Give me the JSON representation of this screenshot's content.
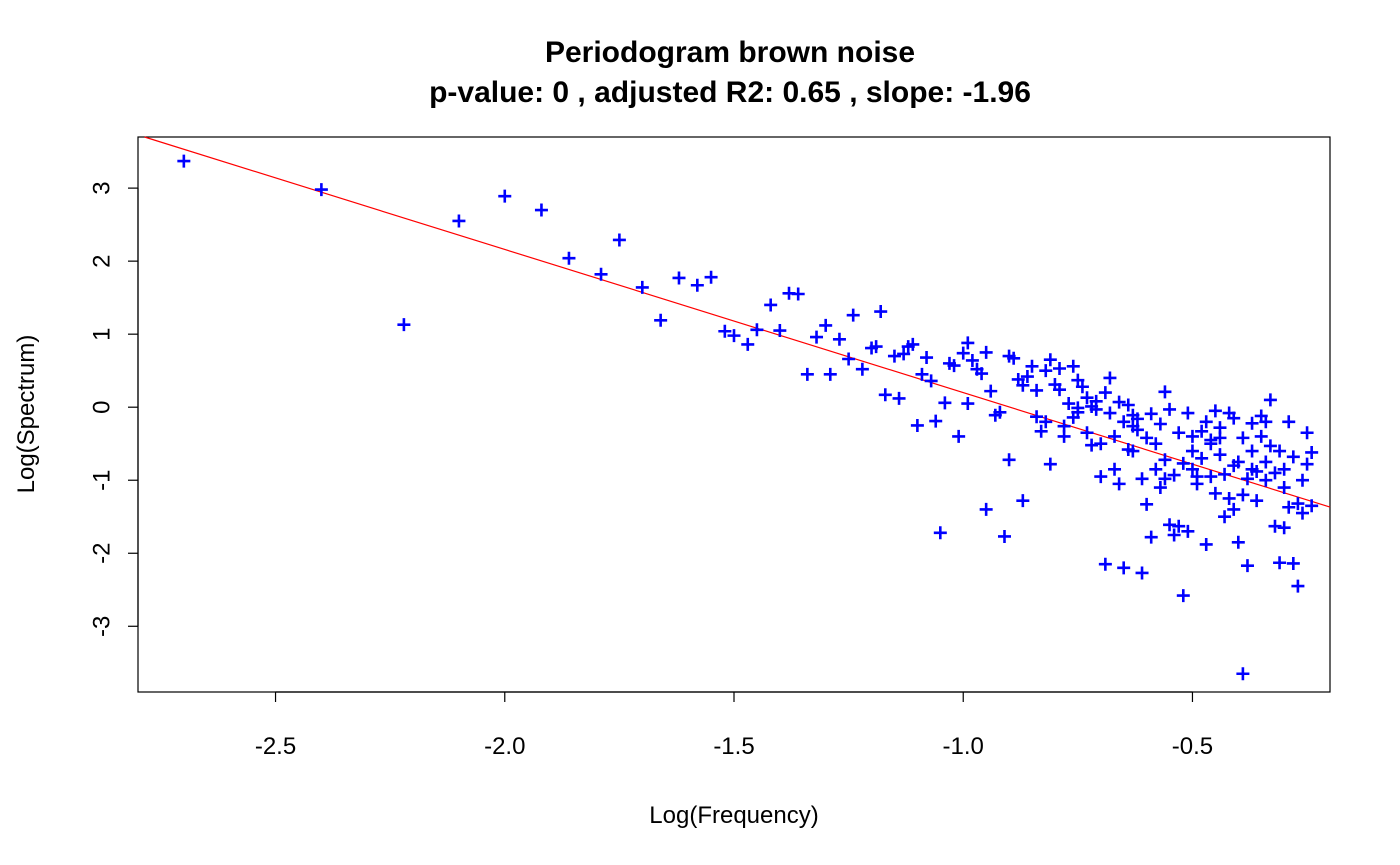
{
  "chart_data": {
    "type": "scatter",
    "title": "Periodogram brown noise",
    "subtitle": "p-value: 0 , adjusted R2: 0.65 , slope: -1.96",
    "xlabel": "Log(Frequency)",
    "ylabel": "Log(Spectrum)",
    "xlim": [
      -2.8,
      -0.2
    ],
    "ylim": [
      -3.9,
      3.7
    ],
    "xticks": [
      -2.5,
      -2.0,
      -1.5,
      -1.0,
      -0.5
    ],
    "xtick_labels": [
      "-2.5",
      "-2.0",
      "-1.5",
      "-1.0",
      "-0.5"
    ],
    "yticks": [
      -3,
      -2,
      -1,
      0,
      1,
      2,
      3
    ],
    "ytick_labels": [
      "-3",
      "-2",
      "-1",
      "0",
      "1",
      "2",
      "3"
    ],
    "grid": false,
    "point_color": "#0000ff",
    "line_color": "#ff0000",
    "marker": "plus",
    "fit_line": {
      "slope": -1.96,
      "intercept": -1.76
    },
    "points": [
      [
        -2.7,
        3.37
      ],
      [
        -2.4,
        2.98
      ],
      [
        -2.22,
        1.13
      ],
      [
        -2.1,
        2.55
      ],
      [
        -2.0,
        2.89
      ],
      [
        -1.92,
        2.7
      ],
      [
        -1.86,
        2.04
      ],
      [
        -1.79,
        1.82
      ],
      [
        -1.75,
        2.29
      ],
      [
        -1.7,
        1.64
      ],
      [
        -1.66,
        1.19
      ],
      [
        -1.62,
        1.77
      ],
      [
        -1.58,
        1.67
      ],
      [
        -1.55,
        1.78
      ],
      [
        -1.52,
        1.04
      ],
      [
        -1.5,
        0.98
      ],
      [
        -1.47,
        0.86
      ],
      [
        -1.45,
        1.06
      ],
      [
        -1.42,
        1.4
      ],
      [
        -1.4,
        1.05
      ],
      [
        -1.38,
        1.56
      ],
      [
        -1.36,
        1.55
      ],
      [
        -1.34,
        0.45
      ],
      [
        -1.32,
        0.96
      ],
      [
        -1.3,
        1.12
      ],
      [
        -1.29,
        0.45
      ],
      [
        -1.27,
        0.93
      ],
      [
        -1.25,
        0.66
      ],
      [
        -1.24,
        1.26
      ],
      [
        -1.22,
        0.52
      ],
      [
        -1.2,
        0.81
      ],
      [
        -1.19,
        0.83
      ],
      [
        -1.18,
        1.31
      ],
      [
        -1.17,
        0.17
      ],
      [
        -1.15,
        0.7
      ],
      [
        -1.14,
        0.12
      ],
      [
        -1.13,
        0.73
      ],
      [
        -1.12,
        0.83
      ],
      [
        -1.11,
        0.86
      ],
      [
        -1.1,
        -0.25
      ],
      [
        -1.09,
        0.45
      ],
      [
        -1.08,
        0.68
      ],
      [
        -1.07,
        0.36
      ],
      [
        -1.06,
        -0.19
      ],
      [
        -1.05,
        -1.72
      ],
      [
        -1.04,
        0.06
      ],
      [
        -1.03,
        0.6
      ],
      [
        -1.02,
        0.57
      ],
      [
        -1.01,
        -0.4
      ],
      [
        -1.0,
        0.74
      ],
      [
        -0.99,
        0.88
      ],
      [
        -0.99,
        0.05
      ],
      [
        -0.98,
        0.64
      ],
      [
        -0.97,
        0.52
      ],
      [
        -0.96,
        0.46
      ],
      [
        -0.95,
        0.75
      ],
      [
        -0.95,
        -1.4
      ],
      [
        -0.94,
        0.22
      ],
      [
        -0.93,
        -0.11
      ],
      [
        -0.92,
        -0.07
      ],
      [
        -0.91,
        -1.77
      ],
      [
        -0.9,
        -0.72
      ],
      [
        -0.9,
        0.7
      ],
      [
        -0.89,
        0.67
      ],
      [
        -0.88,
        0.38
      ],
      [
        -0.87,
        0.3
      ],
      [
        -0.87,
        -1.28
      ],
      [
        -0.86,
        0.42
      ],
      [
        -0.85,
        0.56
      ],
      [
        -0.84,
        0.23
      ],
      [
        -0.84,
        -0.13
      ],
      [
        -0.83,
        -0.33
      ],
      [
        -0.82,
        0.5
      ],
      [
        -0.82,
        -0.2
      ],
      [
        -0.81,
        0.65
      ],
      [
        -0.81,
        -0.78
      ],
      [
        -0.8,
        0.31
      ],
      [
        -0.79,
        0.24
      ],
      [
        -0.79,
        0.53
      ],
      [
        -0.78,
        -0.26
      ],
      [
        -0.78,
        -0.4
      ],
      [
        -0.77,
        0.05
      ],
      [
        -0.76,
        0.56
      ],
      [
        -0.76,
        -0.14
      ],
      [
        -0.75,
        0.37
      ],
      [
        -0.75,
        -0.01
      ],
      [
        -0.74,
        0.28
      ],
      [
        -0.73,
        -0.35
      ],
      [
        -0.73,
        0.13
      ],
      [
        -0.72,
        -0.52
      ],
      [
        -0.72,
        0.01
      ],
      [
        -0.71,
        -0.03
      ],
      [
        -0.71,
        0.08
      ],
      [
        -0.7,
        -0.5
      ],
      [
        -0.7,
        -0.95
      ],
      [
        -0.69,
        0.2
      ],
      [
        -0.69,
        -2.15
      ],
      [
        -0.68,
        -0.08
      ],
      [
        -0.68,
        0.4
      ],
      [
        -0.67,
        -0.85
      ],
      [
        -0.67,
        -0.4
      ],
      [
        -0.66,
        -1.05
      ],
      [
        -0.66,
        0.07
      ],
      [
        -0.65,
        -0.2
      ],
      [
        -0.65,
        -2.2
      ],
      [
        -0.64,
        0.03
      ],
      [
        -0.64,
        -0.58
      ],
      [
        -0.63,
        -0.26
      ],
      [
        -0.63,
        -0.6
      ],
      [
        -0.62,
        -0.16
      ],
      [
        -0.62,
        -0.31
      ],
      [
        -0.61,
        -0.98
      ],
      [
        -0.61,
        -2.27
      ],
      [
        -0.6,
        -0.42
      ],
      [
        -0.6,
        -1.33
      ],
      [
        -0.59,
        -0.09
      ],
      [
        -0.59,
        -1.78
      ],
      [
        -0.58,
        -0.85
      ],
      [
        -0.58,
        -0.5
      ],
      [
        -0.57,
        -0.23
      ],
      [
        -0.57,
        -1.1
      ],
      [
        -0.56,
        0.21
      ],
      [
        -0.56,
        -0.72
      ],
      [
        -0.55,
        -1.61
      ],
      [
        -0.55,
        -0.03
      ],
      [
        -0.54,
        -0.93
      ],
      [
        -0.54,
        -1.75
      ],
      [
        -0.53,
        -0.35
      ],
      [
        -0.53,
        -1.63
      ],
      [
        -0.52,
        -2.58
      ],
      [
        -0.52,
        -0.77
      ],
      [
        -0.51,
        -0.08
      ],
      [
        -0.51,
        -1.7
      ],
      [
        -0.5,
        -0.85
      ],
      [
        -0.5,
        -0.4
      ],
      [
        -0.49,
        -1.05
      ],
      [
        -0.49,
        -0.95
      ],
      [
        -0.48,
        -0.7
      ],
      [
        -0.48,
        -0.33
      ],
      [
        -0.47,
        -0.2
      ],
      [
        -0.47,
        -1.88
      ],
      [
        -0.46,
        -0.5
      ],
      [
        -0.46,
        -0.95
      ],
      [
        -0.45,
        -0.05
      ],
      [
        -0.45,
        -1.18
      ],
      [
        -0.44,
        -0.65
      ],
      [
        -0.44,
        -0.42
      ],
      [
        -0.43,
        -0.92
      ],
      [
        -0.43,
        -1.5
      ],
      [
        -0.42,
        -1.25
      ],
      [
        -0.42,
        -0.08
      ],
      [
        -0.41,
        -1.4
      ],
      [
        -0.41,
        -0.15
      ],
      [
        -0.4,
        -0.75
      ],
      [
        -0.4,
        -1.85
      ],
      [
        -0.39,
        -0.42
      ],
      [
        -0.39,
        -3.65
      ],
      [
        -0.38,
        -0.98
      ],
      [
        -0.38,
        -2.17
      ],
      [
        -0.37,
        -0.6
      ],
      [
        -0.37,
        -0.22
      ],
      [
        -0.36,
        -1.28
      ],
      [
        -0.36,
        -0.88
      ],
      [
        -0.35,
        -0.12
      ],
      [
        -0.35,
        -0.4
      ],
      [
        -0.34,
        -1.0
      ],
      [
        -0.34,
        -0.75
      ],
      [
        -0.33,
        0.1
      ],
      [
        -0.33,
        -0.53
      ],
      [
        -0.32,
        -1.63
      ],
      [
        -0.32,
        -0.9
      ],
      [
        -0.31,
        -0.6
      ],
      [
        -0.31,
        -2.13
      ],
      [
        -0.3,
        -0.85
      ],
      [
        -0.3,
        -1.65
      ],
      [
        -0.29,
        -0.2
      ],
      [
        -0.29,
        -1.37
      ],
      [
        -0.28,
        -2.14
      ],
      [
        -0.28,
        -0.68
      ],
      [
        -0.27,
        -1.32
      ],
      [
        -0.27,
        -2.45
      ],
      [
        -0.26,
        -1.0
      ],
      [
        -0.26,
        -1.45
      ],
      [
        -0.25,
        -0.78
      ],
      [
        -0.25,
        -0.35
      ],
      [
        -0.24,
        -0.62
      ],
      [
        -0.24,
        -1.35
      ],
      [
        -0.34,
        -0.2
      ],
      [
        -0.46,
        -0.45
      ],
      [
        -0.56,
        -0.98
      ],
      [
        -0.63,
        -0.11
      ],
      [
        -0.75,
        -0.07
      ],
      [
        -0.41,
        -0.8
      ],
      [
        -0.37,
        -0.85
      ],
      [
        -0.3,
        -1.1
      ],
      [
        -0.5,
        -0.6
      ],
      [
        -0.44,
        -0.28
      ],
      [
        -0.39,
        -1.2
      ]
    ]
  }
}
